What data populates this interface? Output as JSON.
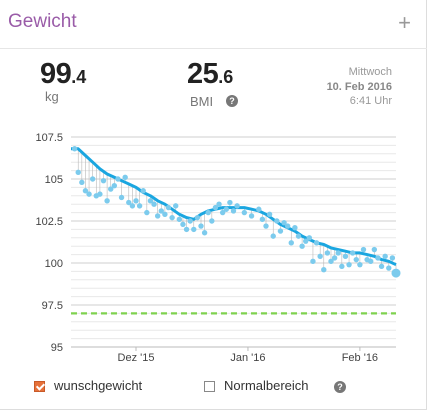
{
  "header": {
    "title": "Gewicht",
    "add_icon": "plus-icon"
  },
  "weight": {
    "integer": "99",
    "fraction": ".4",
    "unit": "kg"
  },
  "bmi": {
    "integer": "25",
    "fraction": ".6",
    "label": "BMI",
    "help_icon": "question-circle-icon"
  },
  "date": {
    "day": "Mittwoch",
    "date": "10. Feb 2016",
    "time": "6:41 Uhr"
  },
  "colors": {
    "accent": "#9a5ca8",
    "trend": "#1aa6e0",
    "points": "#7ccbed",
    "goal": "#7fd24f",
    "checkbox": "#e6713a"
  },
  "legend": {
    "goal_label": "wunschgewicht",
    "goal_checked": true,
    "normal_label": "Normalbereich",
    "normal_checked": false,
    "help_icon": "question-circle-icon"
  },
  "chart_data": {
    "type": "line",
    "y_ticks": [
      "107.5",
      "105",
      "102.5",
      "100",
      "97.5",
      "95"
    ],
    "ylim": [
      95,
      107.5
    ],
    "xlim": [
      0,
      90
    ],
    "x_ticks": [
      {
        "label": "Dez '15",
        "day": 18
      },
      {
        "label": "Jan '16",
        "day": 49
      },
      {
        "label": "Feb '16",
        "day": 80
      }
    ],
    "goal_weight": 97,
    "grid": true,
    "series": [
      {
        "kind": "trend",
        "points": [
          [
            0,
            106.8
          ],
          [
            2,
            106.8
          ],
          [
            4,
            106.4
          ],
          [
            6,
            106.0
          ],
          [
            8,
            105.6
          ],
          [
            10,
            105.3
          ],
          [
            12,
            105.1
          ],
          [
            14,
            104.9
          ],
          [
            16,
            104.7
          ],
          [
            18,
            104.5
          ],
          [
            20,
            104.2
          ],
          [
            22,
            104.0
          ],
          [
            24,
            103.7
          ],
          [
            26,
            103.5
          ],
          [
            28,
            103.2
          ],
          [
            30,
            102.9
          ],
          [
            32,
            102.7
          ],
          [
            34,
            102.6
          ],
          [
            36,
            102.9
          ],
          [
            38,
            103.1
          ],
          [
            40,
            103.2
          ],
          [
            42,
            103.3
          ],
          [
            44,
            103.3
          ],
          [
            46,
            103.3
          ],
          [
            48,
            103.3
          ],
          [
            50,
            103.2
          ],
          [
            52,
            103.1
          ],
          [
            54,
            102.9
          ],
          [
            56,
            102.6
          ],
          [
            58,
            102.3
          ],
          [
            60,
            102.1
          ],
          [
            62,
            101.9
          ],
          [
            64,
            101.6
          ],
          [
            66,
            101.4
          ],
          [
            68,
            101.2
          ],
          [
            70,
            101.1
          ],
          [
            72,
            100.9
          ],
          [
            74,
            100.8
          ],
          [
            76,
            100.7
          ],
          [
            78,
            100.6
          ],
          [
            80,
            100.6
          ],
          [
            82,
            100.5
          ],
          [
            84,
            100.4
          ],
          [
            86,
            100.2
          ],
          [
            88,
            100.1
          ],
          [
            90,
            99.9
          ]
        ]
      },
      {
        "kind": "measurements",
        "points": [
          [
            1,
            106.8
          ],
          [
            2,
            105.4
          ],
          [
            3,
            104.8
          ],
          [
            4,
            104.3
          ],
          [
            5,
            104.1
          ],
          [
            6,
            105.0
          ],
          [
            7,
            104.0
          ],
          [
            8,
            104.1
          ],
          [
            9,
            104.9
          ],
          [
            10,
            103.7
          ],
          [
            11,
            104.4
          ],
          [
            12,
            104.6
          ],
          [
            13,
            105.0
          ],
          [
            14,
            103.9
          ],
          [
            15,
            105.1
          ],
          [
            16,
            103.6
          ],
          [
            17,
            103.4
          ],
          [
            18,
            103.7
          ],
          [
            19,
            103.4
          ],
          [
            20,
            104.3
          ],
          [
            21,
            103.0
          ],
          [
            22,
            103.7
          ],
          [
            23,
            103.5
          ],
          [
            24,
            102.8
          ],
          [
            25,
            103.1
          ],
          [
            26,
            102.9
          ],
          [
            27,
            103.3
          ],
          [
            28,
            102.7
          ],
          [
            29,
            103.4
          ],
          [
            30,
            102.6
          ],
          [
            31,
            102.3
          ],
          [
            32,
            102.0
          ],
          [
            33,
            102.5
          ],
          [
            34,
            102.0
          ],
          [
            35,
            102.7
          ],
          [
            36,
            102.2
          ],
          [
            37,
            101.8
          ],
          [
            38,
            103.0
          ],
          [
            39,
            102.5
          ],
          [
            40,
            103.3
          ],
          [
            41,
            103.5
          ],
          [
            42,
            103.0
          ],
          [
            43,
            103.2
          ],
          [
            44,
            103.6
          ],
          [
            45,
            103.1
          ],
          [
            46,
            103.4
          ],
          [
            48,
            103.0
          ],
          [
            50,
            102.8
          ],
          [
            52,
            103.2
          ],
          [
            53,
            102.6
          ],
          [
            54,
            102.2
          ],
          [
            55,
            102.9
          ],
          [
            56,
            101.6
          ],
          [
            57,
            102.5
          ],
          [
            58,
            101.9
          ],
          [
            59,
            102.4
          ],
          [
            60,
            102.2
          ],
          [
            61,
            101.2
          ],
          [
            62,
            102.1
          ],
          [
            63,
            101.6
          ],
          [
            64,
            101.0
          ],
          [
            65,
            101.3
          ],
          [
            66,
            101.5
          ],
          [
            67,
            100.1
          ],
          [
            68,
            101.2
          ],
          [
            69,
            100.4
          ],
          [
            70,
            99.6
          ],
          [
            71,
            100.6
          ],
          [
            72,
            100.1
          ],
          [
            73,
            100.3
          ],
          [
            74,
            100.6
          ],
          [
            75,
            99.8
          ],
          [
            76,
            100.4
          ],
          [
            77,
            99.9
          ],
          [
            78,
            100.6
          ],
          [
            79,
            100.2
          ],
          [
            80,
            99.9
          ],
          [
            81,
            100.8
          ],
          [
            82,
            100.2
          ],
          [
            83,
            100.1
          ],
          [
            84,
            100.8
          ],
          [
            85,
            100.3
          ],
          [
            86,
            99.8
          ],
          [
            87,
            100.4
          ],
          [
            88,
            99.7
          ],
          [
            89,
            100.3
          ],
          [
            90,
            99.4
          ]
        ]
      }
    ]
  }
}
